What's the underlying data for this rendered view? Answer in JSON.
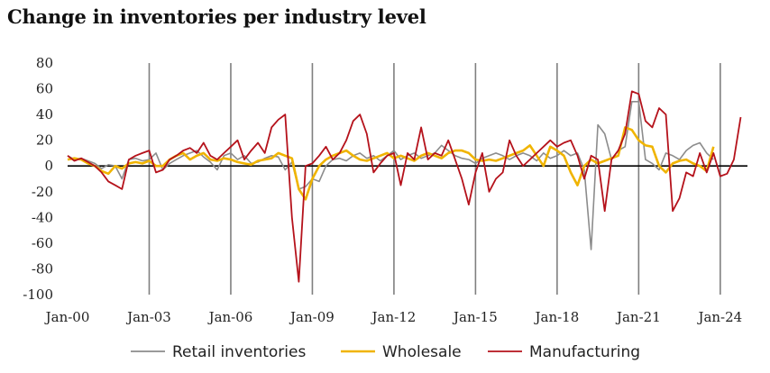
{
  "chart_data": {
    "type": "line",
    "title": "Change in inventories per industry level",
    "xlabel": "",
    "ylabel": "",
    "ylim": [
      -100,
      80
    ],
    "yticks": [
      80,
      60,
      40,
      20,
      0,
      -20,
      -40,
      -60,
      -80,
      -100
    ],
    "xticks": [
      "Jan-00",
      "Jan-03",
      "Jan-06",
      "Jan-09",
      "Jan-12",
      "Jan-15",
      "Jan-18",
      "Jan-21",
      "Jan-24"
    ],
    "x_start": "Jan-00",
    "x_step_months": 3,
    "vertical_gridlines_at": [
      "Jan-03",
      "Jan-06",
      "Jan-09",
      "Jan-12",
      "Jan-15",
      "Jan-18",
      "Jan-21",
      "Jan-24"
    ],
    "legend_position": "bottom",
    "series": [
      {
        "name": "Retail inventories",
        "color": "#8c8c8c",
        "values": [
          8,
          5,
          6,
          4,
          2,
          -2,
          1,
          0,
          -10,
          5,
          6,
          4,
          5,
          10,
          -3,
          2,
          5,
          8,
          10,
          12,
          7,
          3,
          -3,
          8,
          10,
          5,
          8,
          2,
          3,
          6,
          8,
          7,
          -3,
          3,
          -18,
          -16,
          -10,
          -12,
          0,
          5,
          6,
          4,
          8,
          10,
          6,
          8,
          4,
          8,
          12,
          5,
          8,
          10,
          6,
          8,
          10,
          16,
          12,
          8,
          6,
          5,
          2,
          6,
          8,
          10,
          8,
          5,
          8,
          10,
          8,
          4,
          10,
          6,
          8,
          12,
          8,
          10,
          -3,
          -65,
          32,
          25,
          5,
          12,
          15,
          50,
          50,
          5,
          2,
          -3,
          10,
          8,
          5,
          12,
          16,
          18,
          10,
          5
        ]
      },
      {
        "name": "Wholesale",
        "color": "#f0b400",
        "values": [
          5,
          6,
          5,
          2,
          0,
          -4,
          -6,
          0,
          -2,
          2,
          3,
          2,
          4,
          0,
          0,
          5,
          8,
          10,
          5,
          8,
          10,
          5,
          4,
          6,
          5,
          3,
          2,
          1,
          4,
          5,
          6,
          10,
          8,
          6,
          -18,
          -26,
          -10,
          0,
          5,
          8,
          10,
          12,
          8,
          5,
          4,
          6,
          8,
          10,
          6,
          8,
          6,
          4,
          8,
          10,
          8,
          6,
          10,
          12,
          12,
          10,
          5,
          4,
          5,
          4,
          6,
          8,
          10,
          12,
          16,
          8,
          0,
          15,
          12,
          8,
          -5,
          -15,
          0,
          5,
          2,
          4,
          6,
          8,
          30,
          28,
          20,
          16,
          15,
          0,
          -5,
          2,
          4,
          5,
          2,
          0,
          -4,
          15
        ]
      },
      {
        "name": "Manufacturing",
        "color": "#b5121b",
        "values": [
          8,
          4,
          6,
          3,
          0,
          -5,
          -12,
          -15,
          -18,
          5,
          8,
          10,
          12,
          -5,
          -3,
          5,
          8,
          12,
          14,
          10,
          18,
          8,
          5,
          10,
          15,
          20,
          5,
          12,
          18,
          10,
          30,
          36,
          40,
          -40,
          -90,
          0,
          2,
          8,
          15,
          5,
          10,
          20,
          35,
          40,
          25,
          -5,
          2,
          8,
          10,
          -15,
          10,
          5,
          30,
          5,
          10,
          8,
          20,
          5,
          -10,
          -30,
          -5,
          10,
          -20,
          -10,
          -5,
          20,
          8,
          0,
          5,
          10,
          15,
          20,
          15,
          18,
          20,
          8,
          -10,
          8,
          5,
          -35,
          5,
          12,
          25,
          58,
          56,
          35,
          30,
          45,
          40,
          -35,
          -25,
          -5,
          -8,
          10,
          -5,
          10,
          -8,
          -6,
          5,
          38
        ]
      }
    ]
  }
}
